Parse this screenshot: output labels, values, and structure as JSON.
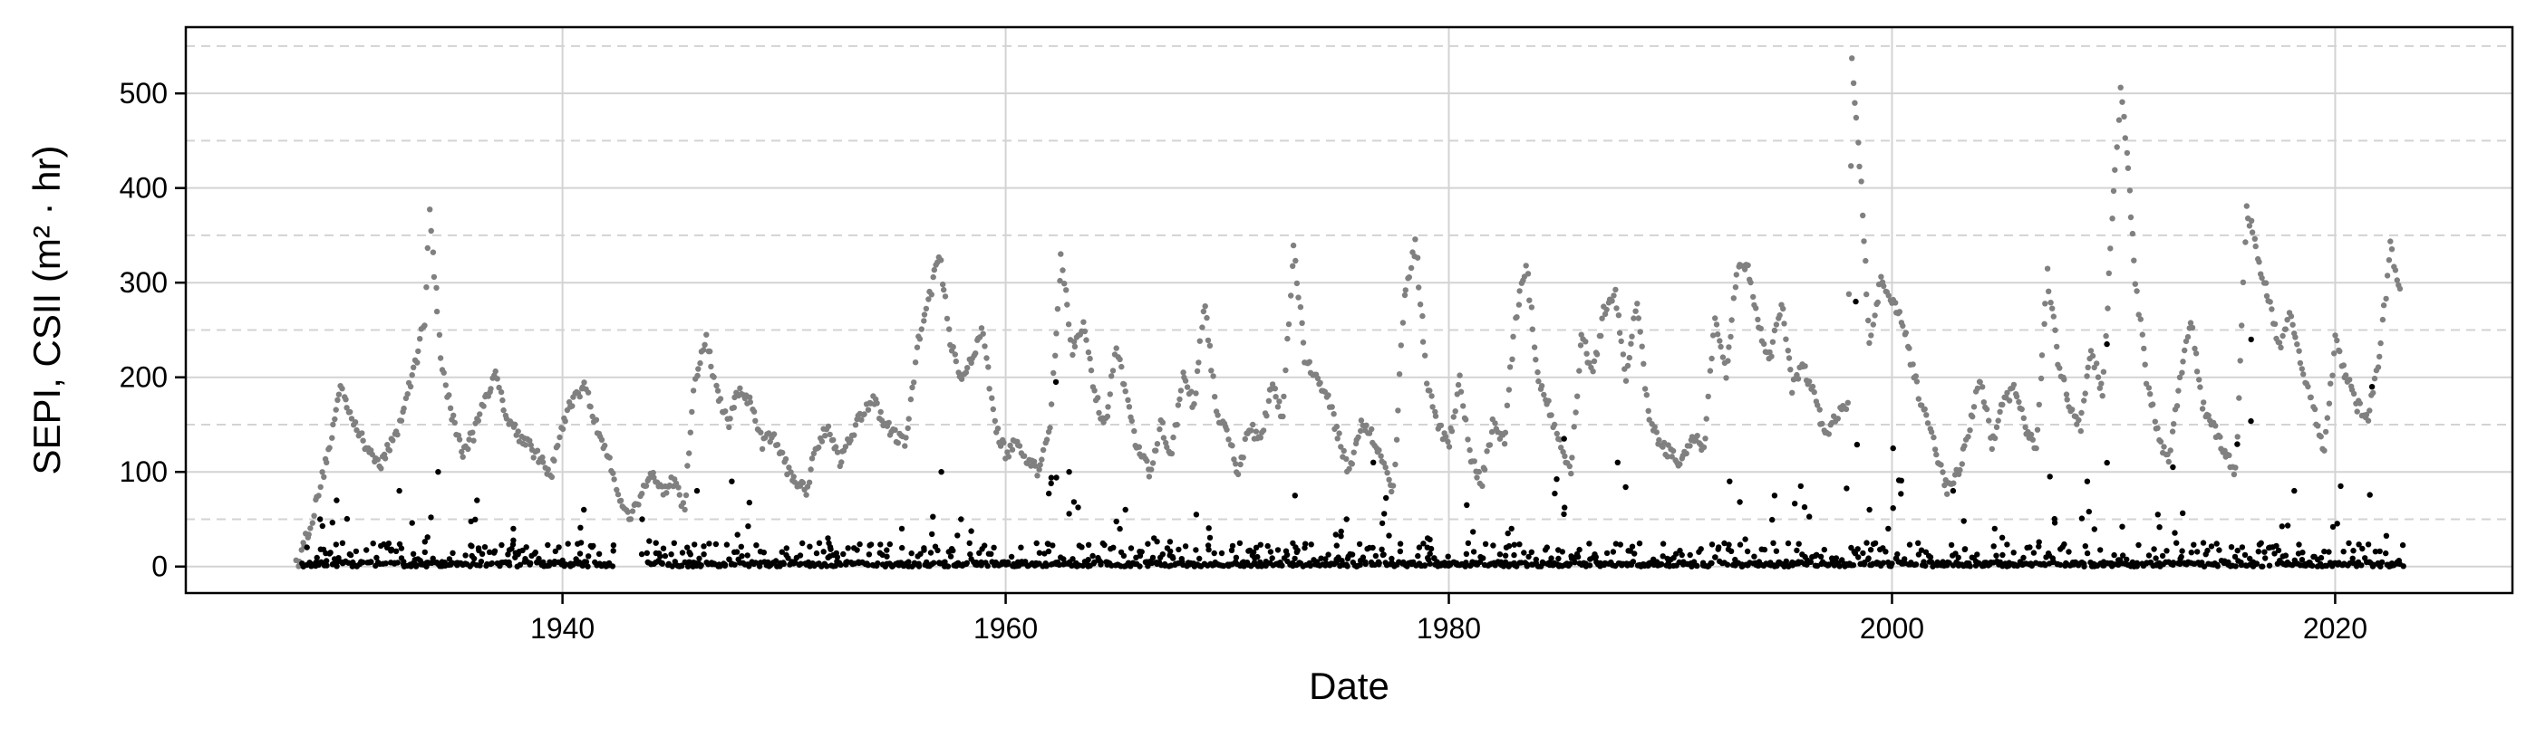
{
  "chart_data": {
    "type": "scatter",
    "xlabel": "Date",
    "ylabel": "SEPI, CSII (m² · hr)",
    "xlim": [
      1923,
      2028
    ],
    "ylim": [
      -28,
      570
    ],
    "xticks": [
      1940,
      1960,
      1980,
      2000,
      2020
    ],
    "yticks": [
      0,
      100,
      200,
      300,
      400,
      500
    ],
    "minor_y_dashed": [
      50,
      150,
      250,
      350,
      450,
      550
    ],
    "grid": true,
    "colors": {
      "sepi": "#808080",
      "csii": "#000000",
      "grid": "#d3d3d3",
      "axes": "#000000"
    },
    "series": [
      {
        "key": "sepi",
        "color": "#808080",
        "anchors": [
          [
            1928.0,
            2
          ],
          [
            1928.7,
            50
          ],
          [
            1929.5,
            130
          ],
          [
            1930.0,
            190
          ],
          [
            1930.5,
            160
          ],
          [
            1931.0,
            130
          ],
          [
            1931.8,
            110
          ],
          [
            1932.5,
            140
          ],
          [
            1933.2,
            200
          ],
          [
            1933.8,
            260
          ],
          [
            1934.0,
            380
          ],
          [
            1934.5,
            220
          ],
          [
            1935.0,
            160
          ],
          [
            1935.5,
            120
          ],
          [
            1936.0,
            140
          ],
          [
            1936.5,
            180
          ],
          [
            1937.0,
            200
          ],
          [
            1937.5,
            160
          ],
          [
            1938.0,
            140
          ],
          [
            1938.5,
            130
          ],
          [
            1939.0,
            110
          ],
          [
            1939.5,
            100
          ],
          [
            1940.0,
            150
          ],
          [
            1940.5,
            180
          ],
          [
            1941.0,
            190
          ],
          [
            1941.5,
            150
          ],
          [
            1942.0,
            120
          ],
          [
            1942.5,
            80
          ],
          [
            1943.0,
            50
          ],
          [
            1944.0,
            100
          ],
          [
            1944.5,
            80
          ],
          [
            1945.0,
            90
          ],
          [
            1945.5,
            60
          ],
          [
            1946.0,
            200
          ],
          [
            1946.5,
            240
          ],
          [
            1947.0,
            180
          ],
          [
            1947.5,
            150
          ],
          [
            1948.0,
            190
          ],
          [
            1948.5,
            170
          ],
          [
            1949.0,
            130
          ],
          [
            1949.5,
            140
          ],
          [
            1950.0,
            110
          ],
          [
            1950.5,
            90
          ],
          [
            1951.0,
            80
          ],
          [
            1951.5,
            130
          ],
          [
            1952.0,
            150
          ],
          [
            1952.5,
            110
          ],
          [
            1953.0,
            140
          ],
          [
            1953.5,
            160
          ],
          [
            1954.0,
            180
          ],
          [
            1954.5,
            150
          ],
          [
            1955.0,
            140
          ],
          [
            1955.5,
            130
          ],
          [
            1956.0,
            230
          ],
          [
            1956.5,
            280
          ],
          [
            1957.0,
            330
          ],
          [
            1957.5,
            240
          ],
          [
            1958.0,
            200
          ],
          [
            1958.5,
            220
          ],
          [
            1959.0,
            250
          ],
          [
            1959.5,
            150
          ],
          [
            1960.0,
            120
          ],
          [
            1960.5,
            130
          ],
          [
            1961.0,
            110
          ],
          [
            1961.5,
            100
          ],
          [
            1962.0,
            150
          ],
          [
            1962.5,
            330
          ],
          [
            1963.0,
            230
          ],
          [
            1963.5,
            260
          ],
          [
            1964.0,
            180
          ],
          [
            1964.5,
            150
          ],
          [
            1965.0,
            230
          ],
          [
            1965.5,
            170
          ],
          [
            1966.0,
            120
          ],
          [
            1966.5,
            100
          ],
          [
            1967.0,
            150
          ],
          [
            1967.5,
            120
          ],
          [
            1968.0,
            200
          ],
          [
            1968.5,
            170
          ],
          [
            1969.0,
            280
          ],
          [
            1969.5,
            160
          ],
          [
            1970.0,
            140
          ],
          [
            1970.5,
            100
          ],
          [
            1971.0,
            150
          ],
          [
            1971.5,
            130
          ],
          [
            1972.0,
            190
          ],
          [
            1972.5,
            160
          ],
          [
            1973.0,
            340
          ],
          [
            1973.5,
            220
          ],
          [
            1974.0,
            200
          ],
          [
            1974.5,
            180
          ],
          [
            1975.0,
            140
          ],
          [
            1975.5,
            100
          ],
          [
            1976.0,
            150
          ],
          [
            1976.5,
            140
          ],
          [
            1977.0,
            110
          ],
          [
            1977.5,
            80
          ],
          [
            1978.0,
            290
          ],
          [
            1978.5,
            340
          ],
          [
            1979.0,
            200
          ],
          [
            1979.5,
            150
          ],
          [
            1980.0,
            130
          ],
          [
            1980.5,
            200
          ],
          [
            1981.0,
            110
          ],
          [
            1981.5,
            90
          ],
          [
            1982.0,
            150
          ],
          [
            1982.5,
            130
          ],
          [
            1983.0,
            260
          ],
          [
            1983.5,
            320
          ],
          [
            1984.0,
            200
          ],
          [
            1984.5,
            170
          ],
          [
            1985.0,
            130
          ],
          [
            1985.5,
            100
          ],
          [
            1986.0,
            250
          ],
          [
            1986.5,
            200
          ],
          [
            1987.0,
            270
          ],
          [
            1987.5,
            290
          ],
          [
            1988.0,
            200
          ],
          [
            1988.5,
            280
          ],
          [
            1989.0,
            160
          ],
          [
            1989.5,
            130
          ],
          [
            1990.0,
            120
          ],
          [
            1990.5,
            110
          ],
          [
            1991.0,
            140
          ],
          [
            1991.5,
            120
          ],
          [
            1992.0,
            260
          ],
          [
            1992.5,
            200
          ],
          [
            1993.0,
            310
          ],
          [
            1993.5,
            320
          ],
          [
            1994.0,
            250
          ],
          [
            1994.5,
            220
          ],
          [
            1995.0,
            280
          ],
          [
            1995.5,
            190
          ],
          [
            1996.0,
            210
          ],
          [
            1996.5,
            180
          ],
          [
            1997.0,
            140
          ],
          [
            1997.5,
            160
          ],
          [
            1998.0,
            170
          ],
          [
            1998.2,
            540
          ],
          [
            1998.6,
            400
          ],
          [
            1999.0,
            240
          ],
          [
            1999.5,
            300
          ],
          [
            2000.0,
            280
          ],
          [
            2000.5,
            260
          ],
          [
            2001.0,
            200
          ],
          [
            2001.5,
            160
          ],
          [
            2002.0,
            120
          ],
          [
            2002.5,
            80
          ],
          [
            2003.0,
            100
          ],
          [
            2003.5,
            150
          ],
          [
            2004.0,
            200
          ],
          [
            2004.5,
            130
          ],
          [
            2005.0,
            170
          ],
          [
            2005.5,
            190
          ],
          [
            2006.0,
            150
          ],
          [
            2006.5,
            120
          ],
          [
            2007.0,
            310
          ],
          [
            2007.5,
            220
          ],
          [
            2008.0,
            170
          ],
          [
            2008.5,
            150
          ],
          [
            2009.0,
            230
          ],
          [
            2009.5,
            180
          ],
          [
            2010.0,
            400
          ],
          [
            2010.3,
            500
          ],
          [
            2010.6,
            440
          ],
          [
            2011.0,
            300
          ],
          [
            2011.5,
            200
          ],
          [
            2012.0,
            140
          ],
          [
            2012.5,
            110
          ],
          [
            2013.0,
            200
          ],
          [
            2013.5,
            260
          ],
          [
            2014.0,
            170
          ],
          [
            2014.5,
            150
          ],
          [
            2015.0,
            120
          ],
          [
            2015.5,
            100
          ],
          [
            2016.0,
            380
          ],
          [
            2016.5,
            330
          ],
          [
            2017.0,
            280
          ],
          [
            2017.5,
            230
          ],
          [
            2018.0,
            270
          ],
          [
            2018.5,
            210
          ],
          [
            2019.0,
            170
          ],
          [
            2019.5,
            120
          ],
          [
            2020.0,
            240
          ],
          [
            2020.5,
            200
          ],
          [
            2021.0,
            170
          ],
          [
            2021.5,
            160
          ],
          [
            2022.0,
            220
          ],
          [
            2022.5,
            340
          ],
          [
            2023.0,
            280
          ]
        ]
      },
      {
        "key": "csii",
        "color": "#000000",
        "peaks": [
          [
            1929,
            50
          ],
          [
            1930,
            70
          ],
          [
            1933,
            80
          ],
          [
            1934,
            100
          ],
          [
            1936,
            70
          ],
          [
            1938,
            40
          ],
          [
            1941,
            60
          ],
          [
            1944,
            50
          ],
          [
            1946,
            80
          ],
          [
            1948,
            90
          ],
          [
            1952,
            30
          ],
          [
            1955,
            40
          ],
          [
            1957,
            100
          ],
          [
            1958,
            50
          ],
          [
            1962,
            195
          ],
          [
            1963,
            100
          ],
          [
            1965,
            60
          ],
          [
            1967,
            30
          ],
          [
            1969,
            55
          ],
          [
            1971,
            20
          ],
          [
            1973,
            75
          ],
          [
            1975,
            50
          ],
          [
            1977,
            110
          ],
          [
            1979,
            30
          ],
          [
            1981,
            65
          ],
          [
            1983,
            40
          ],
          [
            1985,
            135
          ],
          [
            1988,
            110
          ],
          [
            1993,
            90
          ],
          [
            1995,
            75
          ],
          [
            1996,
            85
          ],
          [
            1998,
            280
          ],
          [
            1999,
            60
          ],
          [
            2000,
            125
          ],
          [
            2003,
            80
          ],
          [
            2005,
            40
          ],
          [
            2007,
            95
          ],
          [
            2009,
            90
          ],
          [
            2010,
            235
          ],
          [
            2012,
            55
          ],
          [
            2013,
            105
          ],
          [
            2016,
            240
          ],
          [
            2018,
            80
          ],
          [
            2020,
            85
          ],
          [
            2022,
            190
          ]
        ],
        "baseline_range": [
          0,
          25
        ]
      }
    ]
  }
}
